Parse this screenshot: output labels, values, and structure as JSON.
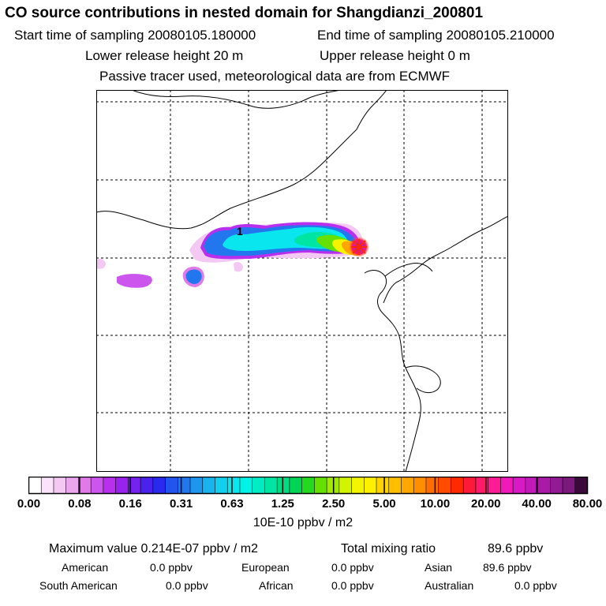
{
  "title": "CO  source contributions in nested domain for Shangdianzi_200801",
  "sampling": {
    "start": "Start time of sampling 20080105.180000",
    "end": "End time of sampling 20080105.210000"
  },
  "release": {
    "lower": "Lower release height   20 m",
    "upper": "Upper release height    0 m"
  },
  "tracer_note": "Passive tracer used, meteorological data are from ECMWF",
  "colors": {
    "frame": "#000000",
    "coast": "#000000",
    "grid": "#000000",
    "station_marker": "#ff2a00"
  },
  "chart_data": {
    "type": "heatmap",
    "title": "CO  source contributions in nested domain for Shangdianzi_200801",
    "grid": true,
    "colorbar": {
      "tick_labels": [
        "0.00",
        "0.08",
        "0.16",
        "0.31",
        "0.63",
        "1.25",
        "2.50",
        "5.00",
        "10.00",
        "20.00",
        "40.00",
        "80.00"
      ],
      "segment_colors": [
        "#ffffff",
        "#fbe4fb",
        "#f3c8f3",
        "#eaa7ee",
        "#e07ae8",
        "#cc55ee",
        "#b92fee",
        "#9922ee",
        "#7522ee",
        "#4a22ee",
        "#2a2aee",
        "#2255ee",
        "#2277ee",
        "#1f96ee",
        "#19b4ee",
        "#12cfee",
        "#0ae6ee",
        "#00f2e6",
        "#00ecc4",
        "#00e4a4",
        "#00dc82",
        "#00d455",
        "#23d81e",
        "#66e000",
        "#a0ea00",
        "#d2f400",
        "#f4f400",
        "#fff000",
        "#ffd400",
        "#ffbe00",
        "#ffa600",
        "#ff8e00",
        "#ff6e00",
        "#ff4c00",
        "#ff2a00",
        "#ff1a3a",
        "#ff1a6a",
        "#ff1a96",
        "#f01ab6",
        "#d81ac4",
        "#c21ab8",
        "#aa1aa6",
        "#921a92",
        "#7a1a7a",
        "#3a0a3a"
      ],
      "unit_label": "10E-10 ppbv / m2"
    },
    "plume_levels": [
      "0.16",
      "0.31",
      "0.63",
      "1.25",
      "2.50",
      "5.00",
      "10.00",
      "20.00",
      "40.00",
      "80.00"
    ],
    "contour_label": "1",
    "station": "Shangdianzi"
  },
  "stats": {
    "maximum": "Maximum value  0.214E-07 ppbv / m2",
    "total": "Total mixing ratio",
    "total_value": "89.6 ppbv"
  },
  "regions": [
    {
      "name": "American",
      "value": "0.0 ppbv"
    },
    {
      "name": "European",
      "value": "0.0 ppbv"
    },
    {
      "name": "Asian",
      "value": "89.6 ppbv"
    },
    {
      "name": "South American",
      "value": "0.0 ppbv"
    },
    {
      "name": "African",
      "value": "0.0 ppbv"
    },
    {
      "name": "Australian",
      "value": "0.0 ppbv"
    }
  ]
}
